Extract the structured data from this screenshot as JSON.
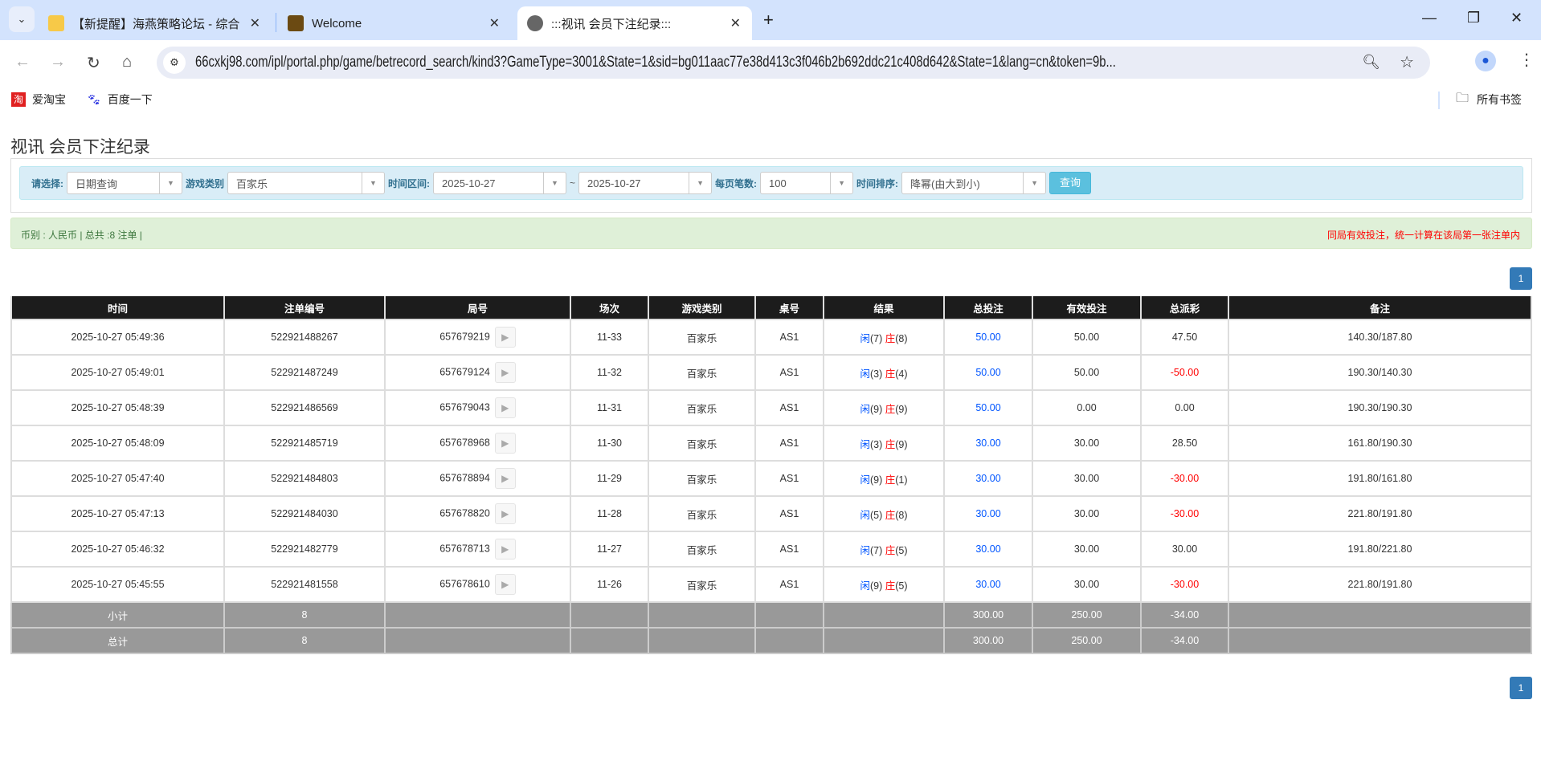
{
  "browser": {
    "tabs": [
      {
        "title": "【新提醒】海燕策略论坛 - 综合",
        "icon": "bulb-icon"
      },
      {
        "title": "Welcome",
        "icon": "game-logo-icon"
      },
      {
        "title": ":::视讯 会员下注纪录:::",
        "icon": "globe-icon",
        "active": true
      }
    ],
    "url": "66cxkj98.com/ipl/portal.php/game/betrecord_search/kind3?GameType=3001&State=1&sid=bg011aac77e38d413c3f046b2b692ddc21c408d642&State=1&lang=cn&token=9b...",
    "bookmarks": [
      {
        "label": "爱淘宝",
        "icon": "taobao-icon"
      },
      {
        "label": "百度一下",
        "icon": "baidu-icon"
      }
    ],
    "all_bookmarks": "所有书签"
  },
  "page": {
    "title": "视讯 会员下注纪录",
    "filters": {
      "select_label": "请选择:",
      "select_value": "日期查询",
      "game_label": "游戏类别",
      "game_value": "百家乐",
      "range_label": "时间区间:",
      "date_from": "2025-10-27",
      "tilde": "~",
      "date_to": "2025-10-27",
      "per_page_label": "每页笔数:",
      "per_page_value": "100",
      "sort_label": "时间排序:",
      "sort_value": "降幂(由大到小)",
      "query_button": "查询"
    },
    "summary_left": "币别 : 人民币 | 总共 :8 注单 |",
    "summary_right": "同局有效投注，统一计算在该局第一张注单内",
    "pagination": {
      "current": "1"
    },
    "colors": {
      "header": "#1c1c1c",
      "bet_blue": "#0055ff",
      "loss_red": "#ff0000",
      "pagination": "#337ab7"
    },
    "table": {
      "headers": [
        "时间",
        "注单编号",
        "局号",
        "场次",
        "游戏类别",
        "桌号",
        "结果",
        "总投注",
        "有效投注",
        "总派彩",
        "备注"
      ],
      "rows": [
        {
          "time": "2025-10-27 05:49:36",
          "bet_id": "522921488267",
          "round": "657679219",
          "shoe": "11-33",
          "game": "百家乐",
          "table": "AS1",
          "player": "闲",
          "player_pts": "(7)",
          "banker": "庄",
          "banker_pts": "(8)",
          "total": "50.00",
          "valid": "50.00",
          "payout": "47.50",
          "note": "140.30/187.80"
        },
        {
          "time": "2025-10-27 05:49:01",
          "bet_id": "522921487249",
          "round": "657679124",
          "shoe": "11-32",
          "game": "百家乐",
          "table": "AS1",
          "player": "闲",
          "player_pts": "(3)",
          "banker": "庄",
          "banker_pts": "(4)",
          "total": "50.00",
          "valid": "50.00",
          "payout": "-50.00",
          "note": "190.30/140.30"
        },
        {
          "time": "2025-10-27 05:48:39",
          "bet_id": "522921486569",
          "round": "657679043",
          "shoe": "11-31",
          "game": "百家乐",
          "table": "AS1",
          "player": "闲",
          "player_pts": "(9)",
          "banker": "庄",
          "banker_pts": "(9)",
          "total": "50.00",
          "valid": "0.00",
          "payout": "0.00",
          "note": "190.30/190.30"
        },
        {
          "time": "2025-10-27 05:48:09",
          "bet_id": "522921485719",
          "round": "657678968",
          "shoe": "11-30",
          "game": "百家乐",
          "table": "AS1",
          "player": "闲",
          "player_pts": "(3)",
          "banker": "庄",
          "banker_pts": "(9)",
          "total": "30.00",
          "valid": "30.00",
          "payout": "28.50",
          "note": "161.80/190.30"
        },
        {
          "time": "2025-10-27 05:47:40",
          "bet_id": "522921484803",
          "round": "657678894",
          "shoe": "11-29",
          "game": "百家乐",
          "table": "AS1",
          "player": "闲",
          "player_pts": "(9)",
          "banker": "庄",
          "banker_pts": "(1)",
          "total": "30.00",
          "valid": "30.00",
          "payout": "-30.00",
          "note": "191.80/161.80"
        },
        {
          "time": "2025-10-27 05:47:13",
          "bet_id": "522921484030",
          "round": "657678820",
          "shoe": "11-28",
          "game": "百家乐",
          "table": "AS1",
          "player": "闲",
          "player_pts": "(5)",
          "banker": "庄",
          "banker_pts": "(8)",
          "total": "30.00",
          "valid": "30.00",
          "payout": "-30.00",
          "note": "221.80/191.80"
        },
        {
          "time": "2025-10-27 05:46:32",
          "bet_id": "522921482779",
          "round": "657678713",
          "shoe": "11-27",
          "game": "百家乐",
          "table": "AS1",
          "player": "闲",
          "player_pts": "(7)",
          "banker": "庄",
          "banker_pts": "(5)",
          "total": "30.00",
          "valid": "30.00",
          "payout": "30.00",
          "note": "191.80/221.80"
        },
        {
          "time": "2025-10-27 05:45:55",
          "bet_id": "522921481558",
          "round": "657678610",
          "shoe": "11-26",
          "game": "百家乐",
          "table": "AS1",
          "player": "闲",
          "player_pts": "(9)",
          "banker": "庄",
          "banker_pts": "(5)",
          "total": "30.00",
          "valid": "30.00",
          "payout": "-30.00",
          "note": "221.80/191.80"
        }
      ],
      "subtotal": {
        "label": "小计",
        "count": "8",
        "total": "300.00",
        "valid": "250.00",
        "payout": "-34.00"
      },
      "grandtotal": {
        "label": "总计",
        "count": "8",
        "total": "300.00",
        "valid": "250.00",
        "payout": "-34.00"
      }
    }
  }
}
